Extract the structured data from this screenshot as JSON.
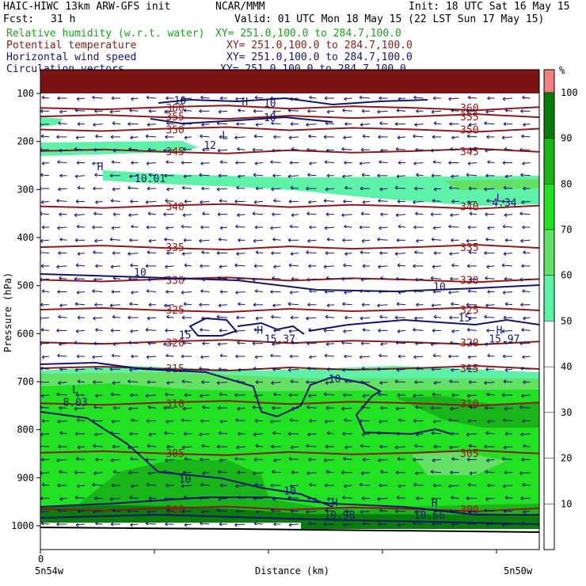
{
  "header": {
    "model": "HAIC-HIWC 13km ARW-GFS init",
    "org": "NCAR/MMM",
    "init": "Init: 18 UTC Sat 16 May 15",
    "fcst_label": "Fcst:",
    "fcst_value": "31 h",
    "valid": "Valid: 01 UTC Mon 18 May 15 (22 LST Sun 17 May 15)"
  },
  "fields": [
    {
      "name": "Relative humidity (w.r.t. water)",
      "xy": "XY= 251.0,100.0 to 284.7,100.0",
      "color": "#1aa31a"
    },
    {
      "name": "Potential temperature",
      "xy": "XY= 251.0,100.0 to 284.7,100.0",
      "color": "#8b1a1a"
    },
    {
      "name": "Horizontal wind speed",
      "xy": "XY= 251.0,100.0 to 284.7,100.0",
      "color": "#14146e"
    },
    {
      "name": "Circulation vectors",
      "xy": "XY= 251.0,100.0 to 284.7,100.0",
      "color": "#14146e"
    }
  ],
  "chart_data": {
    "type": "heatmap",
    "ylabel": "Pressure (hPa)",
    "xlabel": "Distance (km)",
    "y_ticks": [
      100,
      200,
      300,
      400,
      500,
      600,
      700,
      800,
      900,
      1000
    ],
    "ylim": [
      1050,
      60
    ],
    "x_tick_zero": "0",
    "x_left_label": "5n54w",
    "x_right_label": "5n50w",
    "colorbar": {
      "unit": "%",
      "ticks": [
        10,
        20,
        30,
        40,
        50,
        60,
        70,
        80,
        90,
        100
      ],
      "shaded": [
        {
          "from": 50,
          "to": 60,
          "color": "#5ef2a8"
        },
        {
          "from": 60,
          "to": 70,
          "color": "#64e064"
        },
        {
          "from": 70,
          "to": 80,
          "color": "#22e022"
        },
        {
          "from": 80,
          "to": 90,
          "color": "#18b418"
        },
        {
          "from": 90,
          "to": 100,
          "color": "#0a7c0a"
        },
        {
          "from": 100,
          "to": 105,
          "color": "#f08080"
        }
      ]
    },
    "theta_contours": [
      {
        "label": "360",
        "p": 130
      },
      {
        "label": "355",
        "p": 148
      },
      {
        "label": "350",
        "p": 175
      },
      {
        "label": "345",
        "p": 220
      },
      {
        "label": "340",
        "p": 335
      },
      {
        "label": "335",
        "p": 420
      },
      {
        "label": "330",
        "p": 488
      },
      {
        "label": "325",
        "p": 550
      },
      {
        "label": "320",
        "p": 618
      },
      {
        "label": "315",
        "p": 672
      },
      {
        "label": "310",
        "p": 745
      },
      {
        "label": "305",
        "p": 848
      },
      {
        "label": "300",
        "p": 965
      }
    ],
    "wind_labels": [
      {
        "label": "10",
        "x": 0.28,
        "p": 122
      },
      {
        "label": "10",
        "x": 0.46,
        "p": 128
      },
      {
        "label": "10",
        "x": 0.46,
        "p": 158
      },
      {
        "label": "12",
        "x": 0.34,
        "p": 215
      },
      {
        "label": "10.01",
        "x": 0.22,
        "p": 285
      },
      {
        "label": "4.34",
        "x": 0.93,
        "p": 335
      },
      {
        "label": "10",
        "x": 0.2,
        "p": 480
      },
      {
        "label": "10",
        "x": 0.8,
        "p": 510
      },
      {
        "label": "15",
        "x": 0.85,
        "p": 575
      },
      {
        "label": "15",
        "x": 0.29,
        "p": 610
      },
      {
        "label": "15.37",
        "x": 0.48,
        "p": 618
      },
      {
        "label": "15.97",
        "x": 0.93,
        "p": 618
      },
      {
        "label": "10",
        "x": 0.59,
        "p": 702
      },
      {
        "label": "8.03",
        "x": 0.07,
        "p": 750
      },
      {
        "label": "10",
        "x": 0.29,
        "p": 910
      },
      {
        "label": "10",
        "x": 0.5,
        "p": 935
      },
      {
        "label": "10.98",
        "x": 0.6,
        "p": 985
      },
      {
        "label": "10.66",
        "x": 0.78,
        "p": 985
      }
    ],
    "extrema": [
      {
        "label": "H",
        "x": 0.41,
        "p": 125
      },
      {
        "label": "L",
        "x": 0.37,
        "p": 195
      },
      {
        "label": "H",
        "x": 0.12,
        "p": 260
      },
      {
        "label": "L",
        "x": 0.92,
        "p": 325
      },
      {
        "label": "H",
        "x": 0.44,
        "p": 600
      },
      {
        "label": "H",
        "x": 0.92,
        "p": 600
      },
      {
        "label": "L",
        "x": 0.07,
        "p": 724
      },
      {
        "label": "H",
        "x": 0.59,
        "p": 960
      },
      {
        "label": "H",
        "x": 0.79,
        "p": 960
      }
    ]
  }
}
